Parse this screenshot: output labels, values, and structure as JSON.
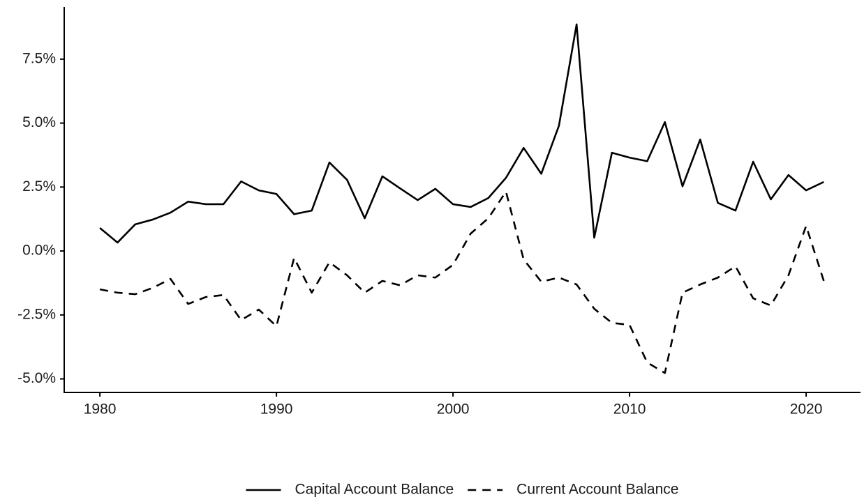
{
  "chart_data": {
    "type": "line",
    "x": [
      1980,
      1981,
      1982,
      1983,
      1984,
      1985,
      1986,
      1987,
      1988,
      1989,
      1990,
      1991,
      1992,
      1993,
      1994,
      1995,
      1996,
      1997,
      1998,
      1999,
      2000,
      2001,
      2002,
      2003,
      2004,
      2005,
      2006,
      2007,
      2008,
      2009,
      2010,
      2011,
      2012,
      2013,
      2014,
      2015,
      2016,
      2017,
      2018,
      2019,
      2020,
      2021
    ],
    "series": [
      {
        "name": "Capital Account Balance",
        "color": "#000000",
        "dash": "solid",
        "values": [
          0.9,
          0.33,
          1.04,
          1.23,
          1.5,
          1.93,
          1.83,
          1.83,
          2.72,
          2.37,
          2.23,
          1.44,
          1.58,
          3.46,
          2.78,
          1.28,
          2.92,
          2.45,
          1.99,
          2.43,
          1.83,
          1.72,
          2.07,
          2.86,
          4.03,
          3.02,
          4.9,
          8.86,
          0.52,
          3.84,
          3.65,
          3.51,
          5.04,
          2.53,
          4.36,
          1.88,
          1.58,
          3.49,
          2.02,
          2.97,
          2.37,
          2.7
        ]
      },
      {
        "name": "Current Account Balance",
        "color": "#000000",
        "dash": "dashed",
        "values": [
          -1.5,
          -1.63,
          -1.69,
          -1.44,
          -1.09,
          -2.07,
          -1.8,
          -1.72,
          -2.7,
          -2.29,
          -2.94,
          -0.27,
          -1.63,
          -0.44,
          -0.95,
          -1.63,
          -1.17,
          -1.34,
          -0.95,
          -1.04,
          -0.54,
          0.68,
          1.28,
          2.32,
          -0.33,
          -1.2,
          -1.04,
          -1.31,
          -2.26,
          -2.81,
          -2.89,
          -4.36,
          -4.77,
          -1.63,
          -1.31,
          -1.04,
          -0.6,
          -1.85,
          -2.13,
          -0.95,
          0.98,
          -1.17
        ]
      }
    ],
    "xlim": [
      1977.98,
      2023.08
    ],
    "xticks": [
      1980,
      1990,
      2000,
      2010,
      2020
    ],
    "ylim": [
      -5.53,
      9.54
    ],
    "yticks": [
      {
        "value": -5,
        "label": "-5.0%"
      },
      {
        "value": -2.5,
        "label": "-2.5%"
      },
      {
        "value": 0,
        "label": "0.0%"
      },
      {
        "value": 2.5,
        "label": "2.5%"
      },
      {
        "value": 5,
        "label": "5.0%"
      },
      {
        "value": 7.5,
        "label": "7.5%"
      }
    ],
    "grid": false,
    "legend": "bottom"
  }
}
